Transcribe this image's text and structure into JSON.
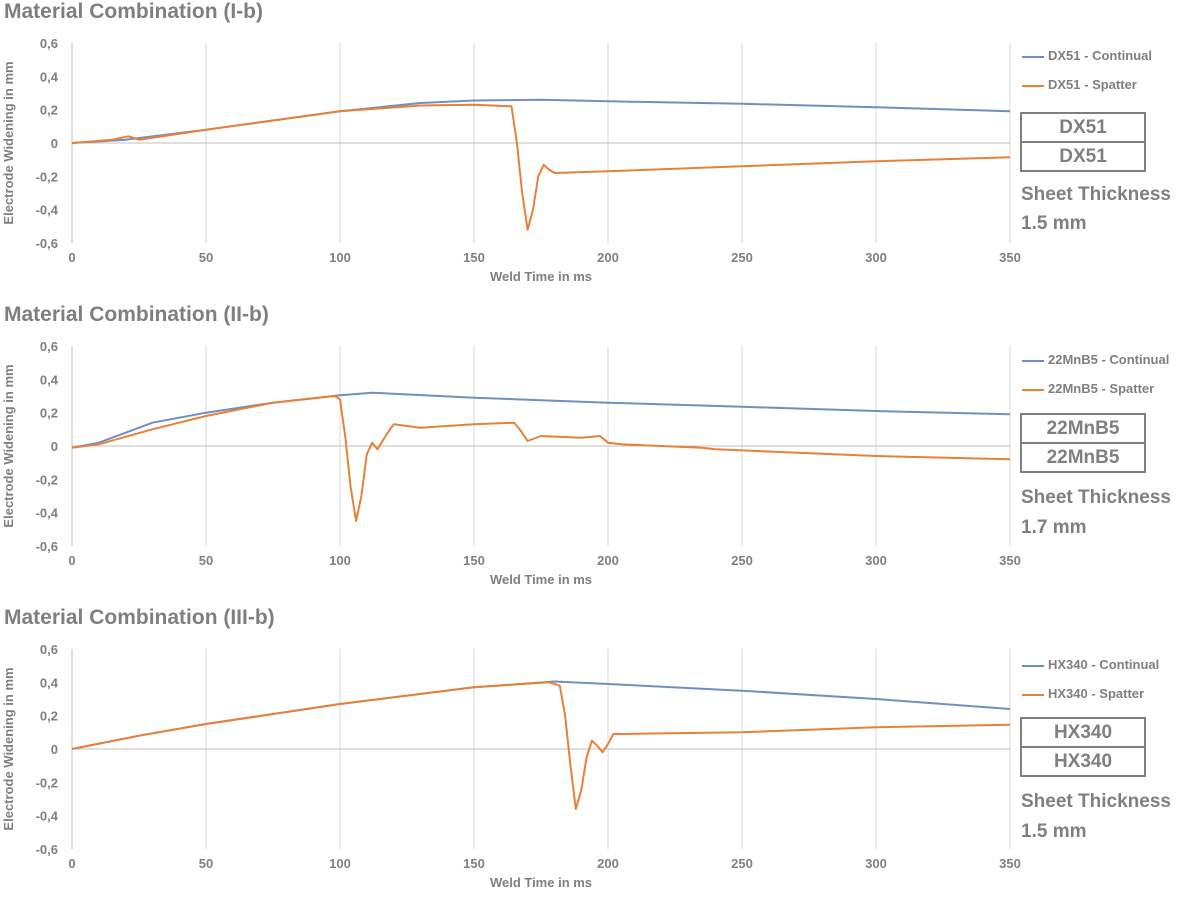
{
  "chart_data": [
    {
      "type": "line",
      "title": "Material Combination (I-b)",
      "xlabel": "Weld Time in ms",
      "ylabel": "Electrode Widening in mm",
      "xlim": [
        0,
        350
      ],
      "ylim": [
        -0.6,
        0.6
      ],
      "xticks": [
        "0",
        "50",
        "100",
        "150",
        "200",
        "250",
        "300",
        "350"
      ],
      "yticks": [
        "0,6",
        "0,4",
        "0,2",
        "0",
        "-0,2",
        "-0,4",
        "-0,6"
      ],
      "grid": "vertical",
      "legend_position": "right",
      "series": [
        {
          "name": "DX51 - Continual",
          "color": "#6f8fbf",
          "x": [
            0,
            20,
            50,
            100,
            130,
            150,
            175,
            200,
            250,
            300,
            350
          ],
          "y": [
            0,
            0.02,
            0.08,
            0.19,
            0.24,
            0.255,
            0.26,
            0.25,
            0.235,
            0.215,
            0.19
          ]
        },
        {
          "name": "DX51 - Spatter",
          "color": "#e8803a",
          "x": [
            0,
            15,
            21,
            25,
            50,
            100,
            130,
            150,
            164,
            166,
            168,
            170,
            172,
            174,
            176,
            178,
            180,
            200,
            250,
            300,
            350
          ],
          "y": [
            0,
            0.02,
            0.04,
            0.02,
            0.08,
            0.19,
            0.225,
            0.23,
            0.22,
            0.0,
            -0.3,
            -0.52,
            -0.4,
            -0.2,
            -0.13,
            -0.16,
            -0.18,
            -0.17,
            -0.14,
            -0.11,
            -0.085
          ]
        }
      ],
      "materials": [
        "DX51",
        "DX51"
      ],
      "sheet_thickness_label": "Sheet Thickness",
      "sheet_thickness_value": "1.5 mm"
    },
    {
      "type": "line",
      "title": "Material Combination (II-b)",
      "xlabel": "Weld Time in ms",
      "ylabel": "Electrode Widening in mm",
      "xlim": [
        0,
        350
      ],
      "ylim": [
        -0.6,
        0.6
      ],
      "xticks": [
        "0",
        "50",
        "100",
        "150",
        "200",
        "250",
        "300",
        "350"
      ],
      "yticks": [
        "0,6",
        "0,4",
        "0,2",
        "0",
        "-0,2",
        "-0,4",
        "-0,6"
      ],
      "grid": "vertical",
      "legend_position": "right",
      "series": [
        {
          "name": "22MnB5 - Continual",
          "color": "#6f8fbf",
          "x": [
            0,
            10,
            30,
            50,
            75,
            100,
            112,
            150,
            200,
            250,
            300,
            350
          ],
          "y": [
            -0.01,
            0.02,
            0.14,
            0.2,
            0.26,
            0.305,
            0.32,
            0.29,
            0.26,
            0.235,
            0.21,
            0.19
          ]
        },
        {
          "name": "22MnB5 - Spatter",
          "color": "#e8803a",
          "x": [
            0,
            10,
            30,
            50,
            75,
            98,
            100,
            102,
            104,
            106,
            108,
            110,
            112,
            114,
            117,
            120,
            130,
            150,
            165,
            167,
            170,
            175,
            190,
            197,
            200,
            205,
            235,
            240,
            300,
            350
          ],
          "y": [
            -0.01,
            0.01,
            0.1,
            0.18,
            0.26,
            0.3,
            0.28,
            0.05,
            -0.25,
            -0.45,
            -0.3,
            -0.05,
            0.02,
            -0.02,
            0.06,
            0.13,
            0.11,
            0.13,
            0.14,
            0.1,
            0.03,
            0.06,
            0.05,
            0.06,
            0.02,
            0.01,
            -0.01,
            -0.02,
            -0.06,
            -0.08
          ]
        }
      ],
      "materials": [
        "22MnB5",
        "22MnB5"
      ],
      "sheet_thickness_label": "Sheet Thickness",
      "sheet_thickness_value": "1.7 mm"
    },
    {
      "type": "line",
      "title": "Material Combination (III-b)",
      "xlabel": "Weld Time in ms",
      "ylabel": "Electrode Widening in mm",
      "xlim": [
        0,
        350
      ],
      "ylim": [
        -0.6,
        0.6
      ],
      "xticks": [
        "0",
        "50",
        "100",
        "150",
        "200",
        "250",
        "300",
        "350"
      ],
      "yticks": [
        "0,6",
        "0,4",
        "0,2",
        "0",
        "-0,2",
        "-0,4",
        "-0,6"
      ],
      "grid": "vertical",
      "legend_position": "right",
      "series": [
        {
          "name": "HX340 - Continual",
          "color": "#6f8fbf",
          "x": [
            0,
            25,
            50,
            100,
            150,
            180,
            200,
            250,
            300,
            350
          ],
          "y": [
            0,
            0.08,
            0.15,
            0.27,
            0.37,
            0.405,
            0.39,
            0.35,
            0.3,
            0.24
          ]
        },
        {
          "name": "HX340 - Spatter",
          "color": "#e8803a",
          "x": [
            0,
            25,
            50,
            100,
            150,
            178,
            182,
            184,
            186,
            188,
            190,
            192,
            194,
            196,
            198,
            200,
            202,
            205,
            250,
            300,
            350
          ],
          "y": [
            0,
            0.08,
            0.15,
            0.27,
            0.37,
            0.4,
            0.38,
            0.2,
            -0.1,
            -0.36,
            -0.25,
            -0.05,
            0.05,
            0.02,
            -0.02,
            0.03,
            0.09,
            0.09,
            0.1,
            0.13,
            0.145
          ]
        }
      ],
      "materials": [
        "HX340",
        "HX340"
      ],
      "sheet_thickness_label": "Sheet Thickness",
      "sheet_thickness_value": "1.5 mm"
    }
  ]
}
